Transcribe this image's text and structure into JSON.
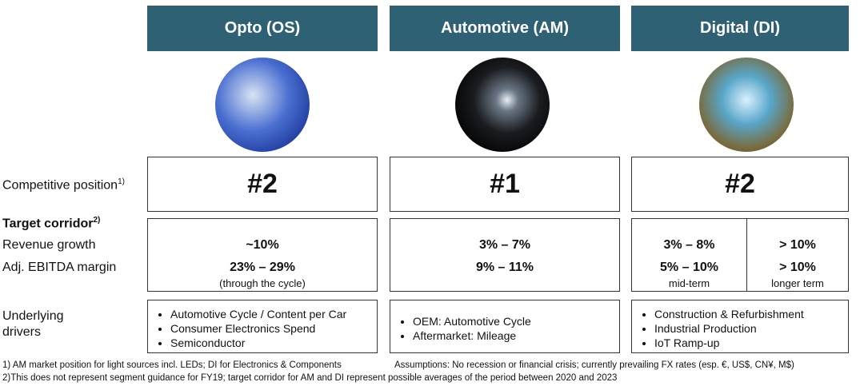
{
  "columns": [
    {
      "title": "Opto (OS)",
      "rank": "#2",
      "revenue": "~10%",
      "ebitda": "23% – 29%",
      "note": "(through the cycle)",
      "drivers": [
        "Automotive Cycle / Content per Car",
        "Consumer Electronics Spend",
        "Semiconductor"
      ]
    },
    {
      "title": "Automotive (AM)",
      "rank": "#1",
      "revenue": "3% – 7%",
      "ebitda": "9% – 11%",
      "drivers": [
        "OEM: Automotive Cycle",
        "Aftermarket: Mileage"
      ]
    },
    {
      "title": "Digital (DI)",
      "rank": "#2",
      "revenue": "3% – 8%",
      "ebitda": "5% – 10%",
      "note": "mid-term",
      "revenue2": "> 10%",
      "ebitda2": "> 10%",
      "note2": "longer term",
      "drivers": [
        "Construction & Refurbishment",
        "Industrial Production",
        "IoT Ramp-up"
      ]
    }
  ],
  "labels": {
    "competitive": "Competitive position",
    "competitive_sup": "1)",
    "target": "Target corridor",
    "target_sup": "2)",
    "revenue": "Revenue growth",
    "ebitda": "Adj. EBITDA margin",
    "drivers1": "Underlying",
    "drivers2": "drivers"
  },
  "footnotes": {
    "f1": "1) AM market position for light sources incl. LEDs; DI for Electronics & Components",
    "assumptions": "Assumptions: No recession or financial crisis; currently prevailing FX rates (esp. €, US$, CN¥, M$)",
    "f2": "2)This does not represent segment guidance for FY19; target corridor for AM and DI represent possible averages of the period between 2020 and 2023"
  },
  "colors": {
    "header": "#2f6174"
  }
}
